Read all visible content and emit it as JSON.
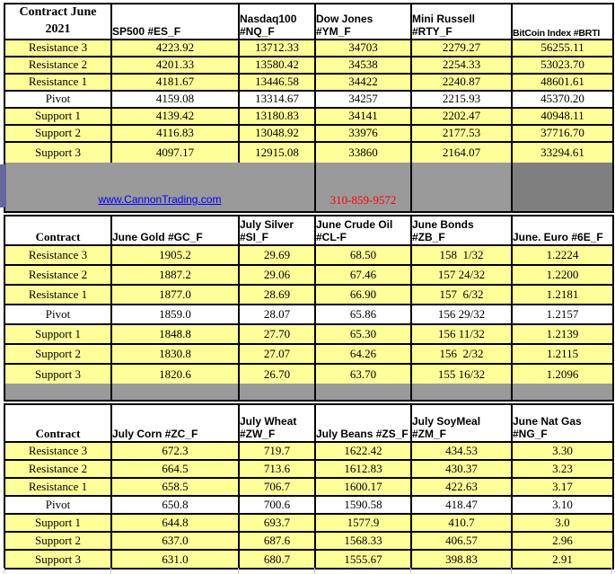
{
  "info_band": {
    "website_link": "www.CannonTrading.com",
    "phone_number": "310-859-9572"
  },
  "colors": {
    "highlight_yellow": "#FFFF99",
    "band_gray": "#9A9A9A",
    "band_dark_gray": "#7F7F7F",
    "accent_strip_purple": "#67679E",
    "link_blue": "#0000FF",
    "phone_red": "#FF0000",
    "border_black": "#000000"
  },
  "tables": [
    {
      "corner_label": "Contract June 2021",
      "columns": [
        "SP500 #ES_F",
        "Nasdaq100 #NQ_F",
        "Dow Jones #YM_F",
        "Mini Russell #RTY_F",
        "BitCoin Index #BRTI"
      ],
      "rows": [
        {
          "label": "Resistance 3",
          "values": [
            "4223.92",
            "13712.33",
            "34703",
            "2279.27",
            "56255.11"
          ]
        },
        {
          "label": "Resistance 2",
          "values": [
            "4201.33",
            "13580.42",
            "34538",
            "2254.33",
            "53023.70"
          ]
        },
        {
          "label": "Resistance 1",
          "values": [
            "4181.67",
            "13446.58",
            "34422",
            "2240.87",
            "48601.61"
          ]
        },
        {
          "label": "Pivot",
          "values": [
            "4159.08",
            "13314.67",
            "34257",
            "2215.93",
            "45370.20"
          ]
        },
        {
          "label": "Support 1",
          "values": [
            "4139.42",
            "13180.83",
            "34141",
            "2202.47",
            "40948.11"
          ]
        },
        {
          "label": "Support 2",
          "values": [
            "4116.83",
            "13048.92",
            "33976",
            "2177.53",
            "37716.70"
          ]
        },
        {
          "label": "Support 3",
          "values": [
            "4097.17",
            "12915.08",
            "33860",
            "2164.07",
            "33294.61"
          ]
        }
      ]
    },
    {
      "corner_label": "Contract",
      "columns": [
        "June Gold #GC_F",
        "July Silver #SI_F",
        "June Crude Oil #CL-F",
        "June Bonds #ZB_F",
        "June.  Euro #6E_F"
      ],
      "rows": [
        {
          "label": "Resistance 3",
          "values": [
            "1905.2",
            "29.69",
            "68.50",
            "158  1/32",
            "1.2224"
          ]
        },
        {
          "label": "Resistance 2",
          "values": [
            "1887.2",
            "29.06",
            "67.46",
            "157 24/32",
            "1.2200"
          ]
        },
        {
          "label": "Resistance 1",
          "values": [
            "1877.0",
            "28.69",
            "66.90",
            "157  6/32",
            "1.2181"
          ]
        },
        {
          "label": "Pivot",
          "values": [
            "1859.0",
            "28.07",
            "65.86",
            "156 29/32",
            "1.2157"
          ]
        },
        {
          "label": "Support 1",
          "values": [
            "1848.8",
            "27.70",
            "65.30",
            "156 11/32",
            "1.2139"
          ]
        },
        {
          "label": "Support 2",
          "values": [
            "1830.8",
            "27.07",
            "64.26",
            "156  2/32",
            "1.2115"
          ]
        },
        {
          "label": "Support 3",
          "values": [
            "1820.6",
            "26.70",
            "63.70",
            "155 16/32",
            "1.2096"
          ]
        }
      ]
    },
    {
      "corner_label": "Contract",
      "columns": [
        "July Corn #ZC_F",
        "July  Wheat #ZW_F",
        "July Beans #ZS_F",
        "July SoyMeal #ZM_F",
        "June Nat Gas #NG_F"
      ],
      "rows": [
        {
          "label": "Resistance 3",
          "values": [
            "672.3",
            "719.7",
            "1622.42",
            "434.53",
            "3.30"
          ]
        },
        {
          "label": "Resistance 2",
          "values": [
            "664.5",
            "713.6",
            "1612.83",
            "430.37",
            "3.23"
          ]
        },
        {
          "label": "Resistance 1",
          "values": [
            "658.5",
            "706.7",
            "1600.17",
            "422.63",
            "3.17"
          ]
        },
        {
          "label": "Pivot",
          "values": [
            "650.8",
            "700.6",
            "1590.58",
            "418.47",
            "3.10"
          ]
        },
        {
          "label": "Support 1",
          "values": [
            "644.8",
            "693.7",
            "1577.9",
            "410.7",
            "3.0"
          ]
        },
        {
          "label": "Support 2",
          "values": [
            "637.0",
            "687.6",
            "1568.33",
            "406.57",
            "2.96"
          ]
        },
        {
          "label": "Support 3",
          "values": [
            "631.0",
            "680.7",
            "1555.67",
            "398.83",
            "2.91"
          ]
        }
      ]
    }
  ]
}
